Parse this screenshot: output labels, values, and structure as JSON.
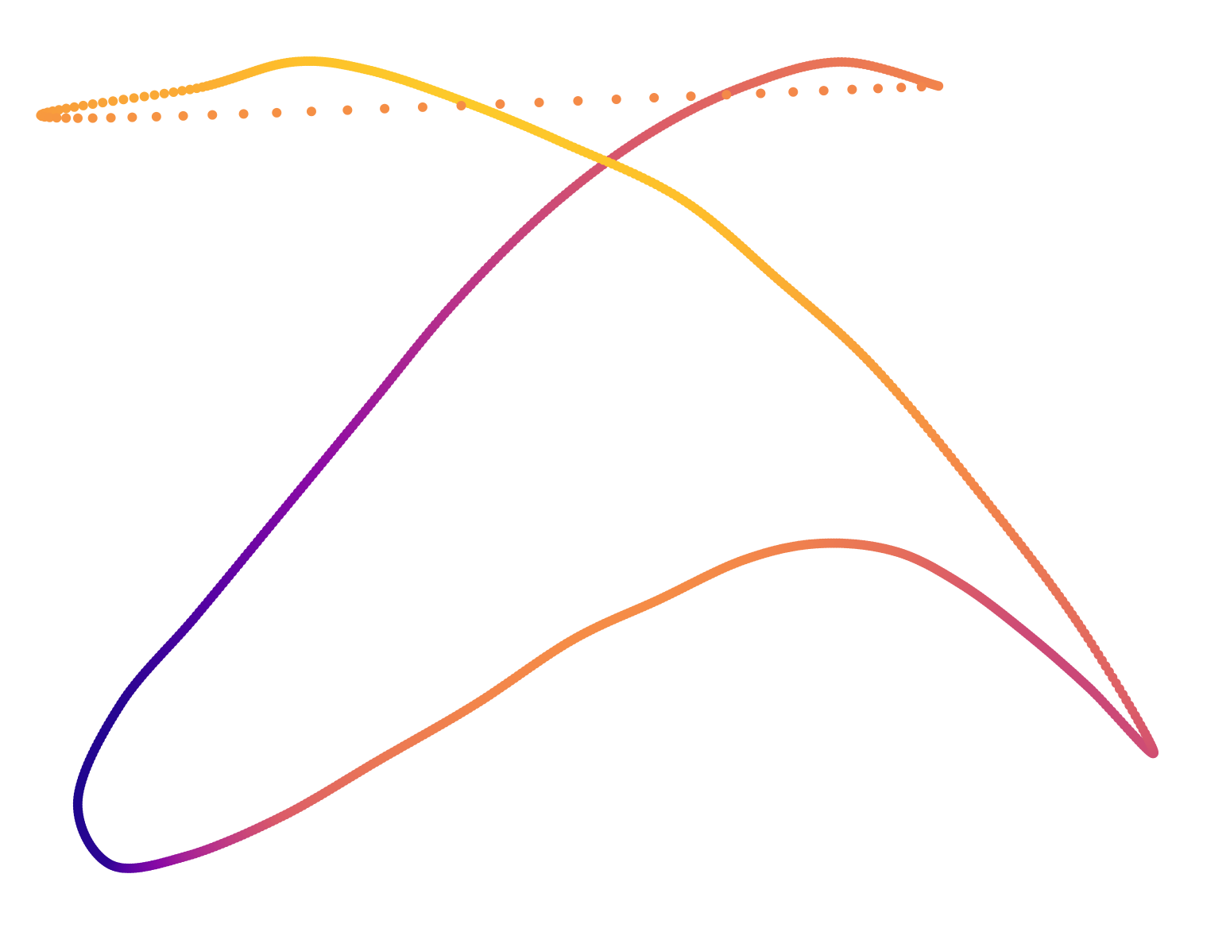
{
  "chart_data": {
    "type": "scatter",
    "title": "",
    "xlabel": "",
    "ylabel": "",
    "axes_visible": false,
    "grid": false,
    "legend": "none",
    "colormap": "plasma",
    "xlim": [
      0,
      1
    ],
    "ylim": [
      0,
      1
    ],
    "x": [
      0.8,
      0.71,
      0.62,
      0.53,
      0.44,
      0.35,
      0.27,
      0.19,
      0.11,
      0.04,
      0.0,
      0.03,
      0.1,
      0.19,
      0.28,
      0.37,
      0.46,
      0.54,
      0.62,
      0.69,
      0.76,
      0.82,
      0.88,
      0.94,
      1.0,
      0.93,
      0.84,
      0.74,
      0.65,
      0.56,
      0.45,
      0.36,
      0.27,
      0.2,
      0.12,
      0.0,
      0.8
    ],
    "y": [
      0.97,
      1.0,
      0.97,
      0.91,
      0.82,
      0.7,
      0.57,
      0.44,
      0.31,
      0.2,
      0.08,
      0.0,
      0.01,
      0.06,
      0.13,
      0.2,
      0.28,
      0.33,
      0.38,
      0.4,
      0.39,
      0.35,
      0.29,
      0.22,
      0.14,
      0.3,
      0.46,
      0.62,
      0.73,
      0.83,
      0.9,
      0.95,
      0.99,
      1.0,
      0.97,
      0.93,
      0.97
    ],
    "color_value": [
      0.62,
      0.58,
      0.54,
      0.5,
      0.45,
      0.38,
      0.3,
      0.22,
      0.12,
      0.05,
      0.03,
      0.06,
      0.32,
      0.5,
      0.58,
      0.62,
      0.64,
      0.64,
      0.63,
      0.6,
      0.56,
      0.5,
      0.45,
      0.44,
      0.46,
      0.55,
      0.62,
      0.68,
      0.72,
      0.76,
      0.78,
      0.79,
      0.78,
      0.76,
      0.72,
      0.66,
      0.62
    ]
  }
}
